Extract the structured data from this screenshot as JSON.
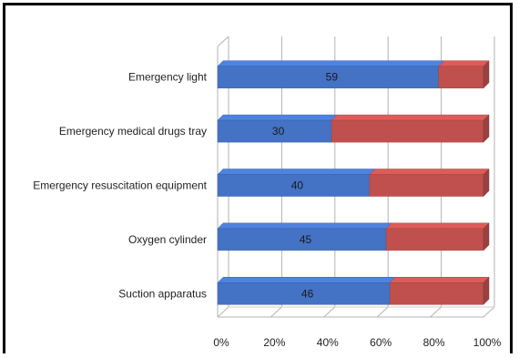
{
  "chart_data": {
    "type": "bar",
    "orientation": "horizontal",
    "stacked": "percent",
    "three_d": true,
    "categories": [
      "Emergency light",
      "Emergency medical drugs tray",
      "Emergency resuscitation equipment",
      "Oxygen cylinder",
      "Suction apparatus"
    ],
    "series": [
      {
        "color": "#4472c4",
        "values": [
          59,
          30,
          40,
          45,
          46
        ],
        "labels": [
          "59",
          "30",
          "40",
          "45",
          "46"
        ]
      },
      {
        "color": "#c0504d",
        "values": [
          12,
          40,
          30,
          26,
          25
        ]
      }
    ],
    "xaxis": {
      "ticks": [
        "0%",
        "20%",
        "40%",
        "60%",
        "80%",
        "100%"
      ],
      "range": [
        0,
        100
      ]
    },
    "grid": true,
    "legend": "none"
  }
}
